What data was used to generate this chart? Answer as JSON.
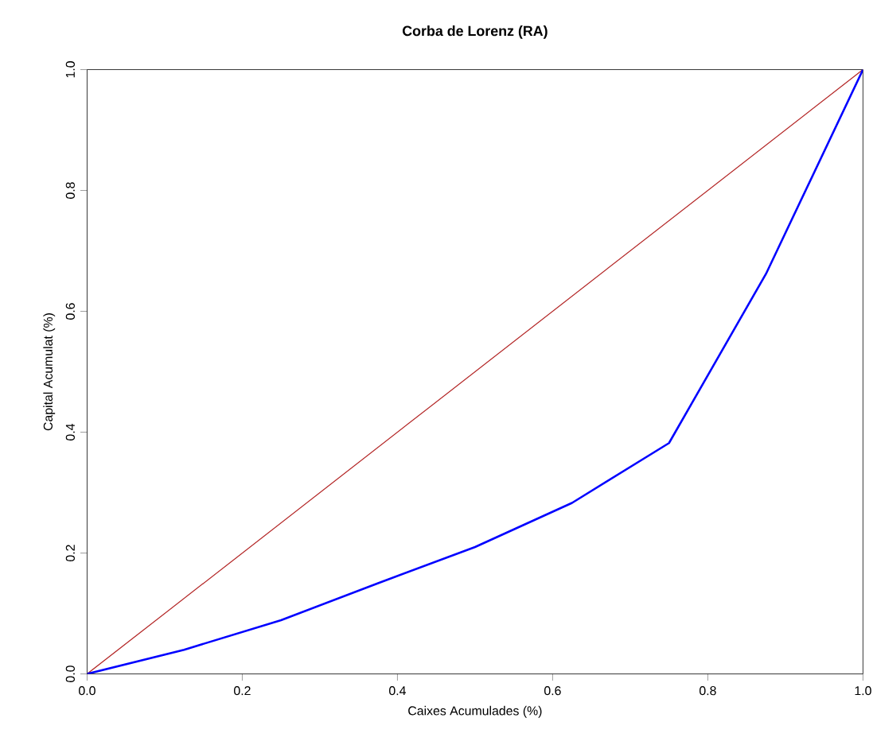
{
  "chart_data": {
    "type": "line",
    "title": "Corba de Lorenz (RA)",
    "xlabel": "Caixes Acumulades (%)",
    "ylabel": "Capital Acumulat (%)",
    "xlim": [
      0,
      1
    ],
    "ylim": [
      0,
      1
    ],
    "xticks": [
      {
        "value": 0,
        "label": "0.0"
      },
      0.2,
      0.4,
      0.6,
      0.8,
      {
        "value": 1,
        "label": "1.0"
      }
    ],
    "yticks": [
      {
        "value": 0,
        "label": "0.0"
      },
      0.2,
      0.4,
      0.6,
      0.8,
      {
        "value": 1,
        "label": "1.0"
      }
    ],
    "series": [
      {
        "color": "#b22222",
        "x": [
          0,
          1
        ],
        "values": [
          0,
          1
        ]
      },
      {
        "color": "#0000ff",
        "x": [
          0,
          0.125,
          0.25,
          0.375,
          0.5,
          0.625,
          0.75,
          0.875,
          1.0
        ],
        "values": [
          0,
          0.04,
          0.089,
          0.15,
          0.21,
          0.283,
          0.382,
          0.662,
          1.0
        ]
      }
    ],
    "grid": false,
    "marker": "none",
    "line_style": "solid"
  }
}
